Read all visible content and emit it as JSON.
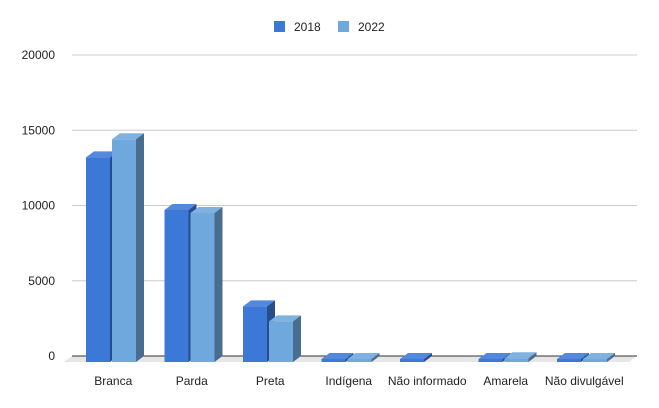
{
  "chart_data": {
    "type": "bar",
    "style": "3d",
    "categories": [
      "Branca",
      "Parda",
      "Preta",
      "Indígena",
      "Não informado",
      "Amarela",
      "Não divulgável"
    ],
    "series": [
      {
        "name": "2018",
        "color": "#3c78d8",
        "values": [
          13600,
          10100,
          3700,
          150,
          60,
          130,
          30
        ]
      },
      {
        "name": "2022",
        "color": "#6fa8dc",
        "values": [
          14800,
          9900,
          2700,
          60,
          null,
          250,
          20
        ]
      }
    ],
    "yticks": [
      0,
      5000,
      10000,
      15000,
      20000
    ],
    "ylim": [
      0,
      20000
    ],
    "grid": true,
    "legend_position": "top"
  }
}
